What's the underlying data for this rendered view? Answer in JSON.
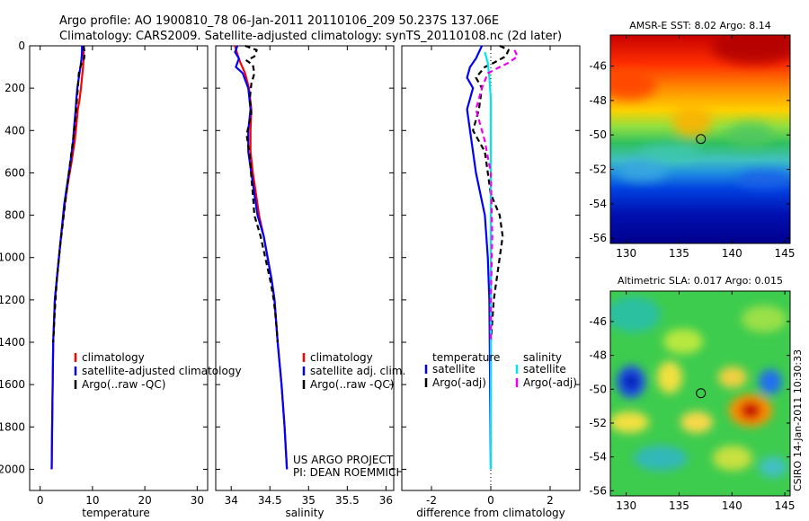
{
  "header": {
    "line1": "Argo profile: AO 1900810_78 06-Jan-2011 20110106_209 50.237S 137.06E",
    "line2": "Climatology: CARS2009. Satellite-adjusted climatology: synTS_20110108.nc (2d later)"
  },
  "side_label": "CSIRO 14-Jan-2011 10:30:33",
  "colors": {
    "climatology": "#ff0000",
    "satellite": "#0000ff",
    "argo": "#000000",
    "salinity_satellite": "#00e5ee",
    "salinity_argo": "#ee00ee"
  },
  "chart_data": [
    {
      "id": "temperature-profile",
      "type": "line",
      "xlabel": "temperature",
      "ylabel": "",
      "xlim": [
        -2,
        32
      ],
      "ylim": [
        2100,
        0
      ],
      "xticks": [
        0,
        10,
        20,
        30
      ],
      "xtick_labels": [
        "0",
        "10",
        "20",
        "30"
      ],
      "yticks": [
        0,
        200,
        400,
        600,
        800,
        1000,
        1200,
        1400,
        1600,
        1800,
        2000
      ],
      "ytick_labels": [
        "0",
        "200",
        "400",
        "600",
        "800",
        "1000",
        "1200",
        "1400",
        "1600",
        "1800",
        "2000"
      ],
      "legend": [
        "climatology",
        "satellite-adjusted climatology",
        "Argo(..raw -QC)"
      ],
      "series": [
        {
          "name": "climatology",
          "color": "#ff0000",
          "dash": false,
          "points": [
            [
              8.2,
              0
            ],
            [
              8.3,
              30
            ],
            [
              8.3,
              60
            ],
            [
              8.2,
              100
            ],
            [
              8.0,
              150
            ],
            [
              7.8,
              200
            ],
            [
              7.5,
              260
            ],
            [
              7.2,
              300
            ],
            [
              6.9,
              380
            ],
            [
              6.6,
              450
            ],
            [
              6.0,
              550
            ],
            [
              5.3,
              650
            ],
            [
              4.7,
              750
            ],
            [
              4.0,
              900
            ],
            [
              3.4,
              1050
            ],
            [
              2.8,
              1200
            ],
            [
              2.5,
              1400
            ],
            [
              2.4,
              1600
            ],
            [
              2.3,
              1800
            ],
            [
              2.2,
              2000
            ]
          ]
        },
        {
          "name": "satellite-adjusted climatology",
          "color": "#0000ff",
          "dash": false,
          "points": [
            [
              8.0,
              0
            ],
            [
              8.0,
              30
            ],
            [
              7.9,
              60
            ],
            [
              7.7,
              100
            ],
            [
              7.4,
              150
            ],
            [
              7.1,
              200
            ],
            [
              6.9,
              260
            ],
            [
              6.8,
              300
            ],
            [
              6.5,
              380
            ],
            [
              6.3,
              450
            ],
            [
              5.8,
              550
            ],
            [
              5.2,
              650
            ],
            [
              4.6,
              750
            ],
            [
              4.0,
              900
            ],
            [
              3.4,
              1050
            ],
            [
              2.8,
              1200
            ],
            [
              2.5,
              1400
            ],
            [
              2.4,
              1600
            ],
            [
              2.3,
              1800
            ],
            [
              2.2,
              2000
            ]
          ]
        },
        {
          "name": "Argo(..raw -QC)",
          "color": "#000000",
          "dash": true,
          "points": [
            [
              8.3,
              0
            ],
            [
              8.5,
              30
            ],
            [
              8.4,
              60
            ],
            [
              7.8,
              90
            ],
            [
              7.4,
              130
            ],
            [
              7.2,
              200
            ],
            [
              6.9,
              300
            ],
            [
              6.6,
              380
            ],
            [
              6.2,
              460
            ],
            [
              5.7,
              560
            ],
            [
              5.1,
              680
            ],
            [
              4.5,
              800
            ],
            [
              3.8,
              950
            ],
            [
              3.2,
              1100
            ],
            [
              2.8,
              1250
            ],
            [
              2.5,
              1400
            ]
          ]
        }
      ]
    },
    {
      "id": "salinity-profile",
      "type": "line",
      "xlabel": "salinity",
      "ylabel": "",
      "xlim": [
        33.8,
        36.1
      ],
      "ylim": [
        2100,
        0
      ],
      "xticks": [
        34,
        34.5,
        35,
        35.5,
        36
      ],
      "xtick_labels": [
        "34",
        "34.5",
        "35",
        "35.5",
        "36"
      ],
      "legend": [
        "climatology",
        "satellite adj. clim.",
        "Argo(..raw -QC)"
      ],
      "annotation": [
        "US ARGO PROJECT",
        "PI: DEAN ROEMMICH"
      ],
      "series": [
        {
          "name": "climatology",
          "color": "#ff0000",
          "dash": false,
          "points": [
            [
              34.05,
              0
            ],
            [
              34.08,
              40
            ],
            [
              34.12,
              80
            ],
            [
              34.18,
              130
            ],
            [
              34.23,
              200
            ],
            [
              34.26,
              300
            ],
            [
              34.25,
              400
            ],
            [
              34.25,
              500
            ],
            [
              34.28,
              600
            ],
            [
              34.32,
              700
            ],
            [
              34.36,
              800
            ],
            [
              34.42,
              900
            ],
            [
              34.47,
              1000
            ],
            [
              34.52,
              1100
            ],
            [
              34.56,
              1200
            ],
            [
              34.6,
              1400
            ],
            [
              34.65,
              1600
            ],
            [
              34.69,
              1800
            ],
            [
              34.72,
              2000
            ]
          ]
        },
        {
          "name": "satellite adj. clim.",
          "color": "#0000ff",
          "dash": false,
          "points": [
            [
              34.08,
              0
            ],
            [
              34.05,
              30
            ],
            [
              34.1,
              60
            ],
            [
              34.06,
              100
            ],
            [
              34.15,
              130
            ],
            [
              34.18,
              160
            ],
            [
              34.22,
              200
            ],
            [
              34.25,
              300
            ],
            [
              34.22,
              400
            ],
            [
              34.22,
              500
            ],
            [
              34.26,
              600
            ],
            [
              34.3,
              700
            ],
            [
              34.34,
              800
            ],
            [
              34.42,
              900
            ],
            [
              34.47,
              1000
            ],
            [
              34.52,
              1100
            ],
            [
              34.56,
              1200
            ],
            [
              34.6,
              1400
            ],
            [
              34.65,
              1600
            ],
            [
              34.69,
              1800
            ],
            [
              34.72,
              2000
            ]
          ]
        },
        {
          "name": "Argo(..raw -QC)",
          "color": "#000000",
          "dash": true,
          "points": [
            [
              34.18,
              0
            ],
            [
              34.33,
              20
            ],
            [
              34.3,
              50
            ],
            [
              34.2,
              70
            ],
            [
              34.28,
              90
            ],
            [
              34.3,
              130
            ],
            [
              34.26,
              180
            ],
            [
              34.24,
              250
            ],
            [
              34.26,
              320
            ],
            [
              34.2,
              420
            ],
            [
              34.24,
              520
            ],
            [
              34.26,
              620
            ],
            [
              34.28,
              700
            ],
            [
              34.3,
              800
            ],
            [
              34.38,
              900
            ],
            [
              34.44,
              1000
            ],
            [
              34.5,
              1100
            ],
            [
              34.55,
              1200
            ],
            [
              34.58,
              1300
            ],
            [
              34.6,
              1400
            ]
          ]
        }
      ]
    },
    {
      "id": "difference-profile",
      "type": "line",
      "xlabel": "difference from climatology",
      "ylabel": "",
      "xlim": [
        -3,
        3
      ],
      "ylim": [
        2100,
        0
      ],
      "xticks": [
        -2,
        0,
        2
      ],
      "xtick_labels": [
        "-2",
        "0",
        "2"
      ],
      "legend_headers": [
        "temperature",
        "salinity"
      ],
      "legend": [
        "satellite",
        "Argo(-adj)",
        "satellite",
        "Argo(-adj)"
      ],
      "series": [
        {
          "name": "temperature satellite",
          "color": "#0000ff",
          "dash": false,
          "points": [
            [
              -0.3,
              0
            ],
            [
              -0.5,
              60
            ],
            [
              -0.7,
              100
            ],
            [
              -0.8,
              150
            ],
            [
              -0.6,
              200
            ],
            [
              -0.8,
              300
            ],
            [
              -0.7,
              400
            ],
            [
              -0.6,
              500
            ],
            [
              -0.5,
              600
            ],
            [
              -0.2,
              800
            ],
            [
              -0.1,
              1000
            ],
            [
              -0.05,
              1200
            ],
            [
              0,
              2000
            ]
          ]
        },
        {
          "name": "temperature Argo(-adj)",
          "color": "#000000",
          "dash": true,
          "points": [
            [
              0.3,
              0
            ],
            [
              0.6,
              20
            ],
            [
              0.5,
              50
            ],
            [
              0.1,
              80
            ],
            [
              -0.2,
              100
            ],
            [
              -0.5,
              150
            ],
            [
              -0.3,
              200
            ],
            [
              -0.4,
              300
            ],
            [
              -0.6,
              400
            ],
            [
              -0.2,
              500
            ],
            [
              0,
              700
            ],
            [
              0.3,
              800
            ],
            [
              0.4,
              900
            ],
            [
              0.3,
              1000
            ],
            [
              0.1,
              1200
            ],
            [
              0,
              1400
            ]
          ]
        },
        {
          "name": "salinity satellite",
          "color": "#00e5ee",
          "dash": false,
          "points": [
            [
              -0.2,
              30
            ],
            [
              -0.1,
              80
            ],
            [
              -0.05,
              150
            ],
            [
              0,
              250
            ],
            [
              0,
              400
            ],
            [
              0,
              800
            ],
            [
              0,
              1200
            ],
            [
              0,
              2000
            ]
          ]
        },
        {
          "name": "salinity Argo(-adj)",
          "color": "#ee00ee",
          "dash": true,
          "points": [
            [
              0.8,
              20
            ],
            [
              0.9,
              50
            ],
            [
              0.6,
              80
            ],
            [
              0.3,
              100
            ],
            [
              -0.1,
              130
            ],
            [
              -0.3,
              200
            ],
            [
              -0.5,
              300
            ],
            [
              -0.4,
              350
            ],
            [
              -0.2,
              450
            ],
            [
              0,
              600
            ],
            [
              0.05,
              900
            ],
            [
              0,
              1200
            ],
            [
              0,
              1400
            ]
          ]
        }
      ]
    },
    {
      "id": "sst-map",
      "type": "heatmap",
      "title": "AMSR-E SST: 8.02 Argo: 8.14",
      "xlim": [
        128.5,
        145.5
      ],
      "ylim": [
        -56.3,
        -44.2
      ],
      "xticks": [
        130,
        135,
        140,
        145
      ],
      "xtick_labels": [
        "130",
        "135",
        "140",
        "145"
      ],
      "yticks": [
        -46,
        -48,
        -50,
        -52,
        -54,
        -56
      ],
      "ytick_labels": [
        "-46",
        "-48",
        "-50",
        "-52",
        "-54",
        "-56"
      ],
      "marker": {
        "lon": 137.06,
        "lat": -50.237
      }
    },
    {
      "id": "sla-map",
      "type": "heatmap",
      "title": "Altimetric SLA: 0.017 Argo: 0.015",
      "xlim": [
        128.5,
        145.5
      ],
      "ylim": [
        -56.3,
        -44.2
      ],
      "xticks": [
        130,
        135,
        140,
        145
      ],
      "xtick_labels": [
        "130",
        "135",
        "140",
        "145"
      ],
      "yticks": [
        -46,
        -48,
        -50,
        -52,
        -54,
        -56
      ],
      "ytick_labels": [
        "-46",
        "-48",
        "-50",
        "-52",
        "-54",
        "-56"
      ],
      "marker": {
        "lon": 137.06,
        "lat": -50.237
      }
    }
  ]
}
